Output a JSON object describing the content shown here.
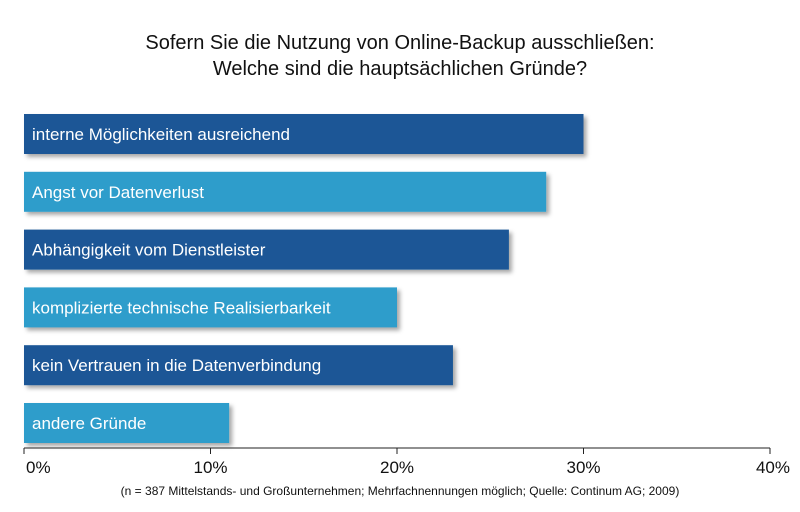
{
  "chart_data": {
    "type": "bar",
    "orientation": "horizontal",
    "title": "Sofern Sie die Nutzung von Online-Backup ausschließen: Welche sind die hauptsächlichen Gründe?",
    "title_lines": [
      "Sofern Sie die Nutzung von Online-Backup ausschließen:",
      "Welche sind die hauptsächlichen Gründe?"
    ],
    "categories": [
      "interne Möglichkeiten ausreichend",
      "Angst vor Datenverlust",
      "Abhängigkeit vom Dienstleister",
      "komplizierte technische Realisierbarkeit",
      "kein Vertrauen in die Datenverbindung",
      "andere Gründe"
    ],
    "values": [
      30,
      28,
      26,
      20,
      23,
      11
    ],
    "bar_colors": [
      "#1a5796",
      "#2f9dcb",
      "#1a5796",
      "#2f9dcb",
      "#1a5796",
      "#2f9dcb"
    ],
    "xlim": [
      0,
      40
    ],
    "x_ticks": [
      "0%",
      "10%",
      "20%",
      "30%",
      "40%"
    ],
    "xlabel": "",
    "ylabel": "",
    "grid": false,
    "footnote": "(n = 387 Mittelstands- und Großunternehmen; Mehrfachnennungen möglich; Quelle: Continum AG; 2009)"
  }
}
